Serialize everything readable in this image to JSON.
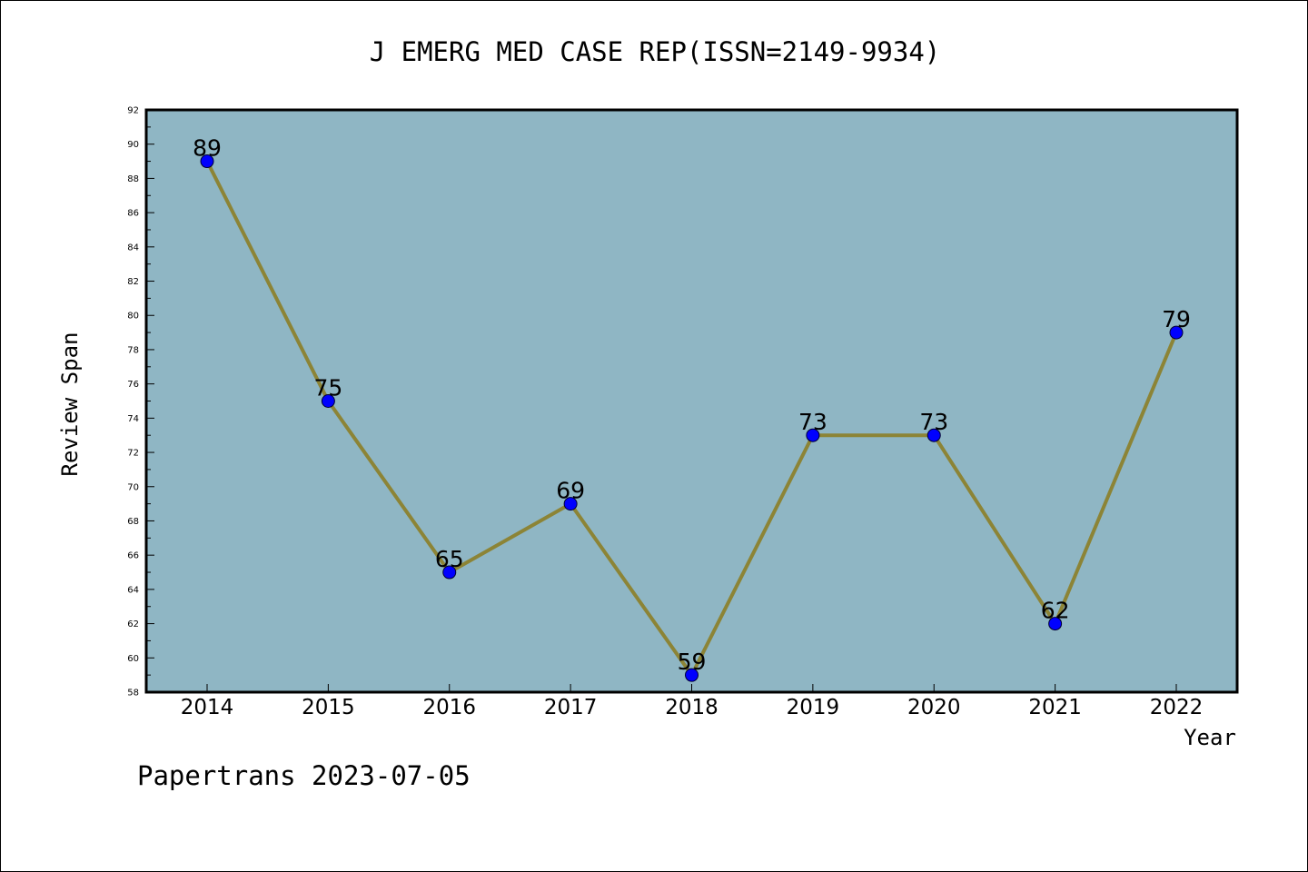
{
  "chart_data": {
    "type": "line",
    "title": "J EMERG MED CASE REP(ISSN=2149-9934)",
    "xlabel": "Year",
    "ylabel": "Review Span",
    "categories": [
      "2014",
      "2015",
      "2016",
      "2017",
      "2018",
      "2019",
      "2020",
      "2021",
      "2022"
    ],
    "series": [
      {
        "values": [
          89,
          75,
          65,
          69,
          59,
          73,
          73,
          62,
          79
        ]
      }
    ],
    "ylim": [
      58,
      92
    ],
    "yticks": [
      58,
      60,
      62,
      64,
      66,
      68,
      70,
      72,
      74,
      76,
      78,
      80,
      82,
      84,
      86,
      88,
      90,
      92
    ],
    "grid": false,
    "colors": {
      "plot_background": "#8fb6c4",
      "line": "#8c8436",
      "marker": "#0000ff"
    }
  },
  "footer": "Papertrans 2023-07-05"
}
